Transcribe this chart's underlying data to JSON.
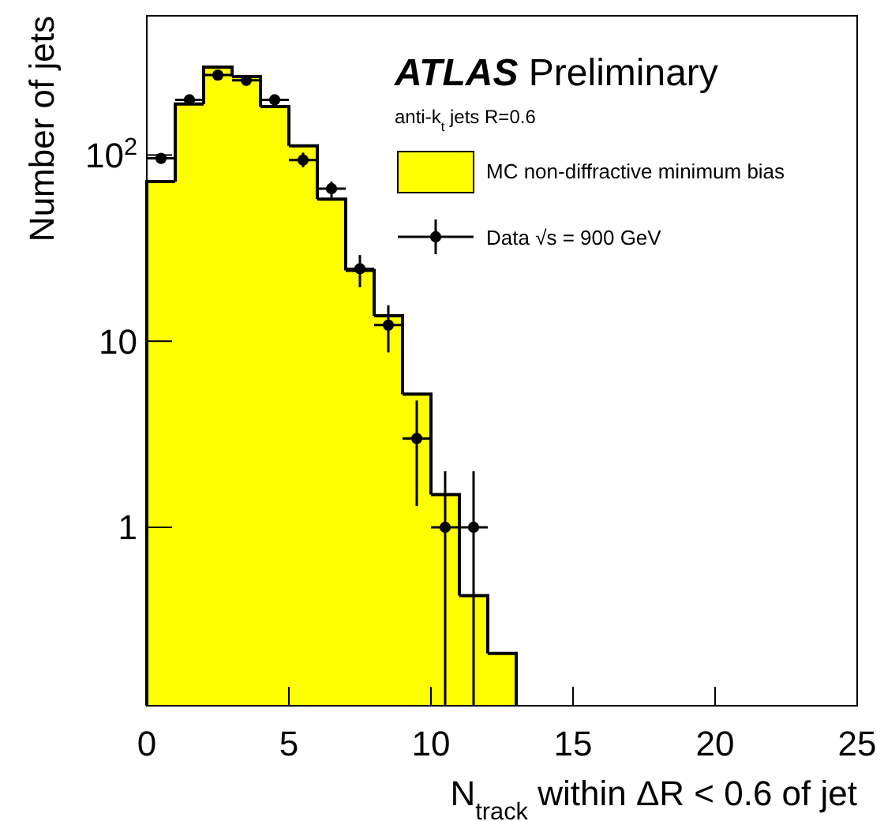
{
  "chart_data": {
    "type": "histogram",
    "xlabel": "N$_{track}$ within ΔR < 0.6 of jet",
    "ylabel": "Number of jets",
    "annotations": [
      "ATLAS Preliminary",
      "anti-k$_{t}$ jets R=0.6"
    ],
    "xlim": [
      0,
      25
    ],
    "xticks": [
      0,
      5,
      10,
      15,
      20,
      25
    ],
    "ylim": [
      0.11,
      560
    ],
    "yticks": [
      1,
      10,
      {
        "value": 100,
        "label": "10$^{2}$"
      }
    ],
    "log": true,
    "legend": "top right",
    "marker": "circle",
    "series": [
      {
        "name": "MC non-diffractive minimum bias",
        "color": "#ffff00",
        "bins": [
          0,
          1,
          2,
          3,
          4,
          5,
          6,
          7,
          8,
          9,
          10,
          11,
          12,
          13
        ],
        "values": [
          72,
          188,
          297,
          264,
          182,
          112,
          58,
          24,
          13.7,
          5.2,
          1.5,
          0.43,
          0.21
        ]
      },
      {
        "type": "scatter",
        "name": "Data √s = 900 GeV",
        "color": "#000000",
        "x": [
          0.5,
          1.5,
          2.5,
          3.5,
          4.5,
          5.5,
          6.5,
          7.5,
          8.5,
          9.5,
          10.5,
          11.5
        ],
        "values": [
          96,
          198,
          269,
          252,
          198,
          94,
          66,
          24.5,
          12.2,
          3,
          1,
          1
        ],
        "xerrors": [
          0.5,
          0.5,
          0.5,
          0.5,
          0.5,
          0.5,
          0.5,
          0.5,
          0.5,
          0.5,
          0.5,
          0.5
        ],
        "errors": [
          null,
          null,
          null,
          null,
          null,
          [
            86,
            103
          ],
          [
            59,
            72
          ],
          [
            19.5,
            29
          ],
          [
            8.7,
            15.6
          ],
          [
            1.3,
            4.8
          ],
          [
            0.11,
            2
          ],
          [
            0.11,
            2
          ]
        ]
      }
    ]
  }
}
